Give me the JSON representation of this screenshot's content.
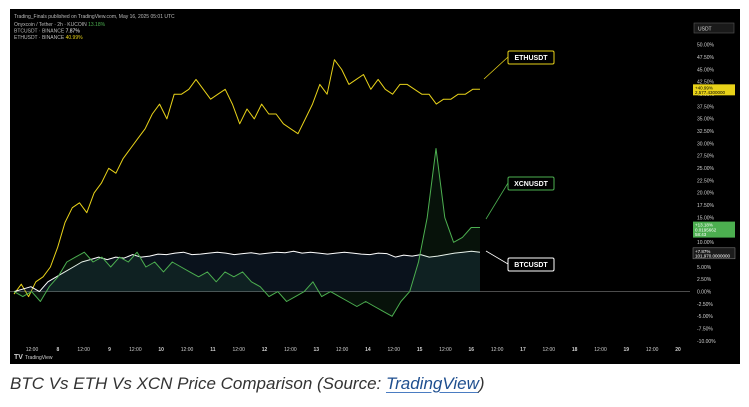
{
  "header": {
    "publisher": "Trading_Finals published on TradingView.com, May 16, 2025 05:01 UTC",
    "legend": [
      {
        "label": "Onyxcoin / Tether · 2h · KUCOIN",
        "value": "13.18%",
        "color": "#4caf50"
      },
      {
        "label": "BTCUSDT · BINANCE",
        "value": "7.87%",
        "color": "#ffffff"
      },
      {
        "label": "ETHUSDT · BINANCE",
        "value": "40.99%",
        "color": "#e8d219"
      }
    ]
  },
  "axis": {
    "currency_box": "USDT",
    "tradingview_logo": "TradingView"
  },
  "callouts": {
    "eth": "ETHUSDT",
    "xcn": "XCNUSDT",
    "btc": "BTCUSDT"
  },
  "price_tags": {
    "eth": {
      "pct": "+40.99%",
      "price": "2,577.4300000",
      "color": "#e8d219"
    },
    "xcn": {
      "pct": "+13.18%",
      "price": "0.0195662",
      "time": "58:43",
      "color": "#4caf50"
    },
    "btc": {
      "pct": "+7.87%",
      "price": "101,970.0000000",
      "color": "#ffffff"
    }
  },
  "caption": {
    "prefix": "BTC Vs ETH Vs XCN Price Comparison (Source: ",
    "link": "TradingView",
    "suffix": ")"
  },
  "chart_data": {
    "type": "line",
    "title": "",
    "ylabel": "",
    "ylim": [
      -10,
      52
    ],
    "y_ticks": [
      "50.00%",
      "47.50%",
      "45.00%",
      "42.50%",
      "40.00%",
      "37.50%",
      "35.00%",
      "32.50%",
      "30.00%",
      "27.50%",
      "25.00%",
      "22.50%",
      "20.00%",
      "17.50%",
      "15.00%",
      "12.50%",
      "10.00%",
      "7.50%",
      "5.00%",
      "2.50%",
      "0.00%",
      "-2.50%",
      "-5.00%",
      "-7.50%",
      "-10.00%"
    ],
    "x_ticks": [
      "12:00",
      "8",
      "12:00",
      "9",
      "12:00",
      "10",
      "12:00",
      "11",
      "12:00",
      "12",
      "12:00",
      "13",
      "12:00",
      "14",
      "12:00",
      "15",
      "12:00",
      "16",
      "12:00",
      "17",
      "12:00",
      "18",
      "12:00",
      "19",
      "12:00",
      "20"
    ],
    "grid": false,
    "series": [
      {
        "name": "ETHUSDT",
        "color": "#e8d219",
        "values": [
          -0.5,
          1.5,
          -1,
          2,
          3,
          5,
          9,
          14,
          17,
          18,
          16,
          20,
          22,
          25,
          24,
          27,
          29,
          31,
          33,
          36,
          38,
          35,
          40,
          40,
          41,
          43,
          41,
          39,
          40,
          41,
          38,
          34,
          37,
          35,
          38,
          36,
          36,
          34,
          33,
          32,
          35,
          38,
          42,
          40,
          47,
          45,
          42,
          43,
          44,
          41,
          43,
          41,
          40,
          42,
          42,
          41,
          40,
          40,
          38,
          39,
          39,
          40,
          40,
          41,
          41
        ]
      },
      {
        "name": "BTCUSDT",
        "color": "#ffffff",
        "values": [
          0,
          0.5,
          1,
          0,
          2,
          3,
          4,
          5,
          6,
          6.5,
          7,
          6.5,
          7,
          6.8,
          7.5,
          7,
          7.2,
          7.6,
          7.5,
          7.8,
          8,
          7.5,
          7.6,
          7.8,
          8,
          7.8,
          7.5,
          7.7,
          7.9,
          7.6,
          7.8,
          8,
          7.9,
          8.2,
          7.8,
          8,
          7.8,
          7.6,
          7.8,
          8,
          7.8,
          7.6,
          7.5,
          7.8,
          7.7,
          7,
          7.4,
          7.2,
          7.5,
          7,
          7.2,
          7.5,
          7.8,
          8,
          8.2,
          8
        ]
      },
      {
        "name": "XCNUSDT",
        "color": "#4caf50",
        "values": [
          0,
          -1,
          0,
          -2,
          1,
          3,
          6,
          7,
          8,
          6,
          7,
          5,
          7,
          6,
          8,
          5,
          6,
          4,
          6,
          5,
          4,
          3,
          4,
          2,
          4,
          3,
          4,
          2,
          1,
          -1,
          0,
          -2,
          -1,
          0,
          2,
          -1,
          0,
          -1,
          -2,
          -3,
          -2,
          -3,
          -4,
          -5,
          -2,
          0,
          6,
          15,
          29,
          15,
          10,
          11,
          13,
          13
        ]
      }
    ]
  }
}
